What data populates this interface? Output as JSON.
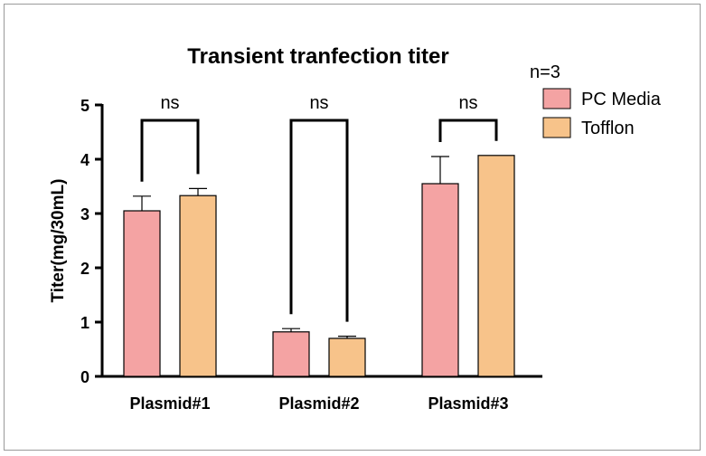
{
  "chart_data": {
    "type": "bar",
    "title": "Transient tranfection titer",
    "xlabel": "",
    "ylabel": "Titer(mg/30mL)",
    "ylim": [
      0,
      5
    ],
    "yticks": [
      "0",
      "1",
      "2",
      "3",
      "4",
      "5"
    ],
    "categories": [
      "Plasmid#1",
      "Plasmid#2",
      "Plasmid#3"
    ],
    "series": [
      {
        "name": "PC Media",
        "color": "#F4A3A3",
        "values": [
          3.05,
          0.82,
          3.55
        ],
        "errors": [
          0.27,
          0.06,
          0.5
        ]
      },
      {
        "name": "Tofflon",
        "color": "#F7C38A",
        "values": [
          3.33,
          0.7,
          4.07
        ],
        "errors": [
          0.13,
          0.04,
          0.0
        ]
      }
    ],
    "legend_title": "n=3",
    "significance": [
      "ns",
      "ns",
      "ns"
    ]
  }
}
